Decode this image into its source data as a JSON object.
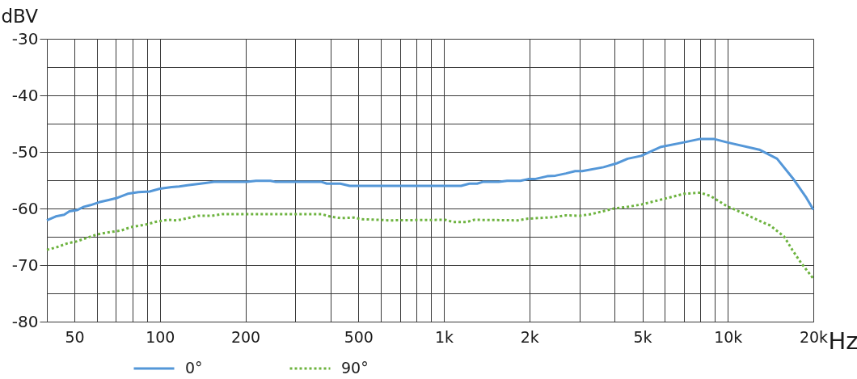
{
  "chart_data": {
    "type": "line",
    "xlabel": "Hz",
    "ylabel": "dBV",
    "log": "x",
    "xlim": [
      40,
      20000
    ],
    "ylim": [
      -80,
      -30
    ],
    "xticks": [
      50,
      {
        "value": 60,
        "label": null
      },
      {
        "value": 70,
        "label": null
      },
      {
        "value": 80,
        "label": null
      },
      {
        "value": 90,
        "label": null
      },
      100,
      200,
      {
        "value": 300,
        "label": null
      },
      {
        "value": 400,
        "label": null
      },
      500,
      {
        "value": 600,
        "label": null
      },
      {
        "value": 700,
        "label": null
      },
      {
        "value": 800,
        "label": null
      },
      {
        "value": 900,
        "label": null
      },
      {
        "value": 1000,
        "label": "1k"
      },
      {
        "value": 2000,
        "label": "2k"
      },
      {
        "value": 3000,
        "label": null
      },
      {
        "value": 4000,
        "label": null
      },
      {
        "value": 5000,
        "label": "5k"
      },
      {
        "value": 6000,
        "label": null
      },
      {
        "value": 7000,
        "label": null
      },
      {
        "value": 8000,
        "label": null
      },
      {
        "value": 9000,
        "label": null
      },
      {
        "value": 10000,
        "label": "10k"
      },
      {
        "value": 20000,
        "label": "20k"
      }
    ],
    "yticks": [
      -80,
      {
        "value": -75,
        "label": null
      },
      -70,
      {
        "value": -65,
        "label": null
      },
      -60,
      {
        "value": -55,
        "label": null
      },
      -50,
      {
        "value": -45,
        "label": null
      },
      -40,
      {
        "value": -35,
        "label": null
      },
      -30
    ],
    "grid": true,
    "legend": "bottom left",
    "series": [
      {
        "name": "0°",
        "color": "#5497d8",
        "line_style": "solid",
        "x": [
          40,
          43,
          46,
          48,
          51,
          54,
          57,
          61,
          66,
          71,
          77,
          84,
          92,
          100,
          110,
          117,
          125,
          139,
          155,
          202,
          218,
          245,
          256,
          371,
          387,
          432,
          466,
          1150,
          1230,
          1310,
          1370,
          1560,
          1670,
          1860,
          1980,
          2090,
          2310,
          2470,
          2690,
          2900,
          3070,
          3650,
          4070,
          4440,
          4950,
          5820,
          7010,
          7990,
          8910,
          9930,
          12900,
          14900,
          16900,
          18900,
          20000
        ],
        "values": [
          -62.1,
          -61.4,
          -61.1,
          -60.5,
          -60.3,
          -59.7,
          -59.4,
          -58.9,
          -58.5,
          -58.1,
          -57.4,
          -57.1,
          -57.0,
          -56.5,
          -56.2,
          -56.1,
          -55.9,
          -55.6,
          -55.3,
          -55.3,
          -55.1,
          -55.1,
          -55.3,
          -55.3,
          -55.6,
          -55.6,
          -56.0,
          -56.0,
          -55.6,
          -55.6,
          -55.3,
          -55.3,
          -55.1,
          -55.1,
          -54.8,
          -54.8,
          -54.3,
          -54.2,
          -53.8,
          -53.4,
          -53.4,
          -52.7,
          -52.0,
          -51.2,
          -50.7,
          -49.1,
          -48.3,
          -47.7,
          -47.7,
          -48.3,
          -49.6,
          -51.2,
          -54.6,
          -58.1,
          -60.2
        ]
      },
      {
        "name": "90°",
        "color": "#6db33f",
        "line_style": "dotted",
        "x": [
          40,
          43,
          47,
          51,
          56,
          60,
          66,
          73,
          79,
          90,
          96,
          107,
          115,
          128,
          136,
          152,
          166,
          292,
          371,
          396,
          432,
          481,
          514,
          585,
          640,
          1010,
          1080,
          1200,
          1280,
          1820,
          1980,
          2310,
          2470,
          2690,
          3000,
          3300,
          3980,
          4440,
          4950,
          5850,
          7010,
          7990,
          8700,
          9930,
          11300,
          13200,
          14100,
          15800,
          16900,
          18100,
          20000
        ],
        "values": [
          -67.3,
          -66.9,
          -66.2,
          -65.8,
          -65.1,
          -64.6,
          -64.2,
          -63.9,
          -63.3,
          -62.8,
          -62.4,
          -62.0,
          -62.1,
          -61.6,
          -61.3,
          -61.3,
          -61.0,
          -61.0,
          -61.0,
          -61.4,
          -61.7,
          -61.6,
          -61.9,
          -62.0,
          -62.1,
          -62.0,
          -62.4,
          -62.4,
          -62.0,
          -62.1,
          -61.8,
          -61.6,
          -61.5,
          -61.2,
          -61.3,
          -61.0,
          -60.0,
          -59.7,
          -59.3,
          -58.4,
          -57.4,
          -57.2,
          -57.8,
          -59.6,
          -60.8,
          -62.4,
          -63.0,
          -65.0,
          -67.4,
          -69.6,
          -72.4
        ]
      }
    ]
  }
}
